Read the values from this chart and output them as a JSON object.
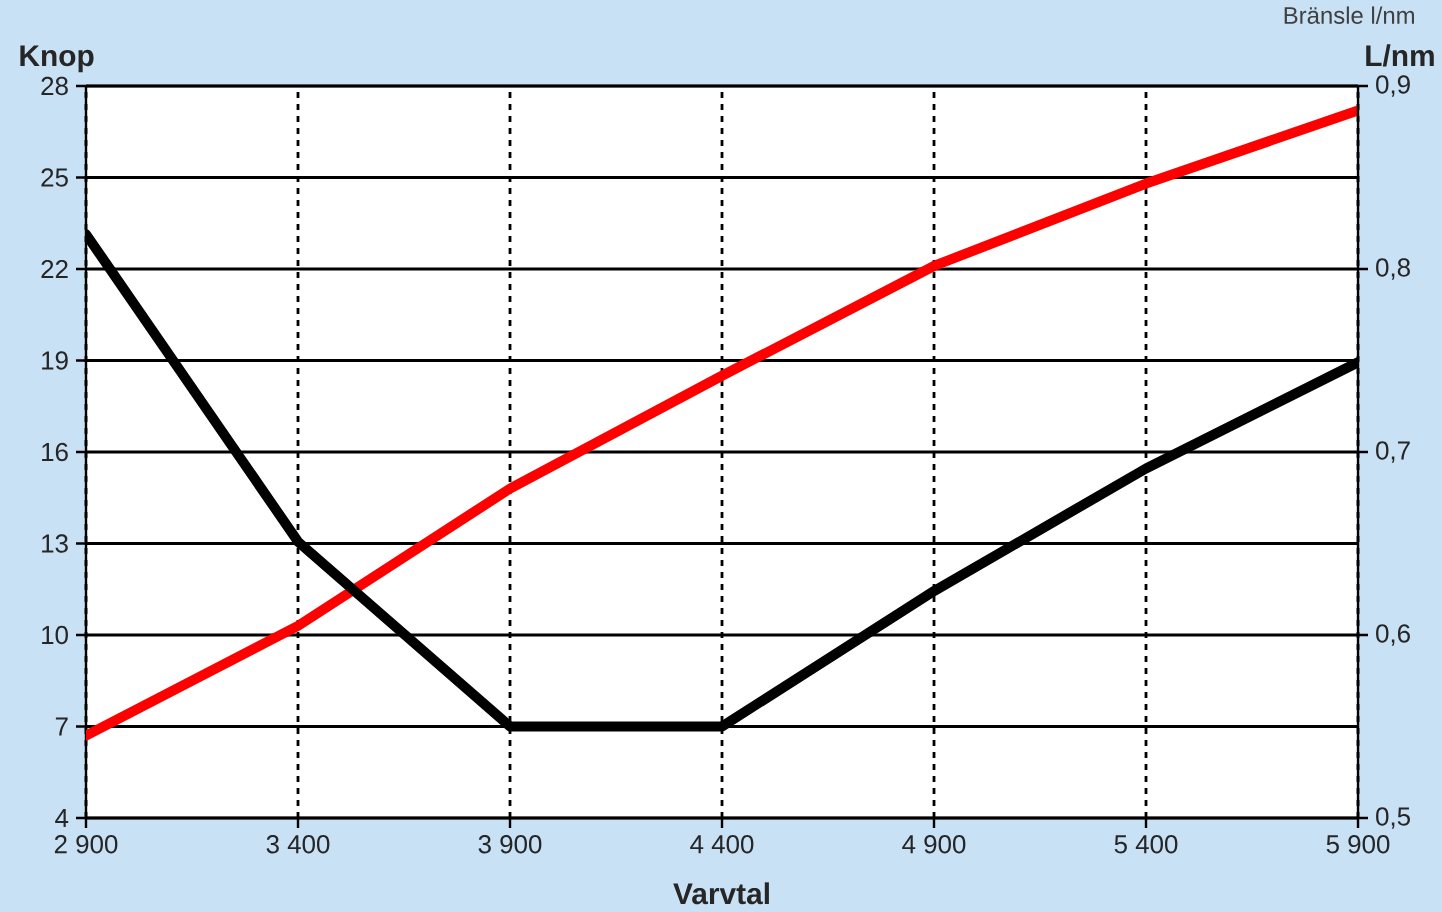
{
  "chart_data": {
    "type": "line",
    "xlabel": "Varvtal",
    "ylabel": "Knop",
    "y2label": "L/nm",
    "annotations": [
      "Bränsle l/nm"
    ],
    "x": [
      2900,
      3400,
      3900,
      4400,
      4900,
      5400,
      5900
    ],
    "xlim": [
      2900,
      5900
    ],
    "xticks": [
      {
        "value": 2900,
        "label": "2 900"
      },
      {
        "value": 3400,
        "label": "3 400"
      },
      {
        "value": 3900,
        "label": "3 900"
      },
      {
        "value": 4400,
        "label": "4 400"
      },
      {
        "value": 4900,
        "label": "4 900"
      },
      {
        "value": 5400,
        "label": "5 400"
      },
      {
        "value": 5900,
        "label": "5 900"
      }
    ],
    "ylim": [
      4,
      28
    ],
    "yticks": [
      4,
      7,
      10,
      13,
      16,
      19,
      22,
      25,
      28
    ],
    "y2lim": [
      0.5,
      0.9
    ],
    "y2ticks": [
      {
        "value": 0.5,
        "label": "0,5"
      },
      {
        "value": 0.6,
        "label": "0,6"
      },
      {
        "value": 0.7,
        "label": "0,7"
      },
      {
        "value": 0.8,
        "label": "0,8"
      },
      {
        "value": 0.9,
        "label": "0,9"
      }
    ],
    "grid": true,
    "marker": "none",
    "line_style": "solid",
    "series": [
      {
        "color": "#ff0000",
        "values": [
          6.7,
          10.3,
          14.8,
          18.5,
          22.1,
          24.8,
          27.2
        ]
      },
      {
        "color": "#000000",
        "axis": "y2",
        "values": [
          0.819,
          0.651,
          0.55,
          0.55,
          0.624,
          0.691,
          0.749
        ]
      }
    ]
  }
}
